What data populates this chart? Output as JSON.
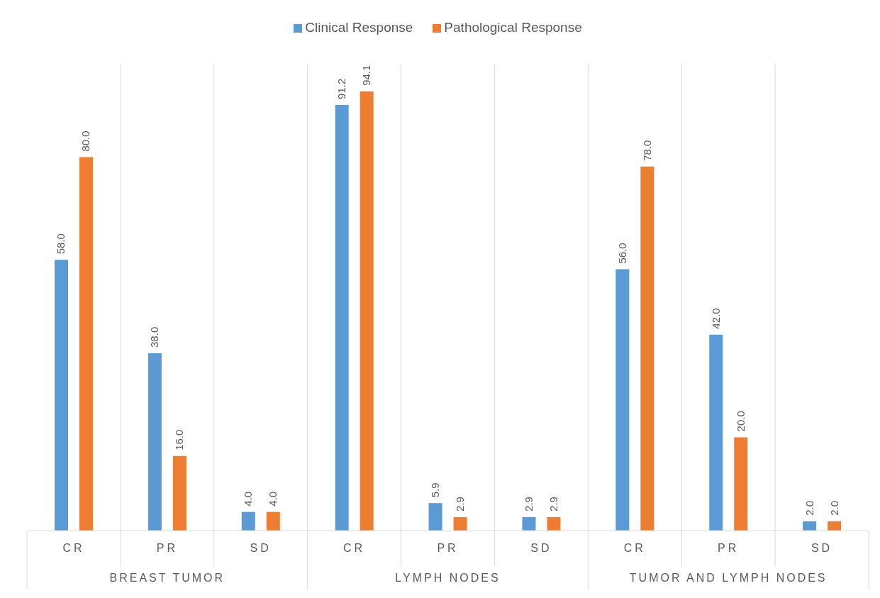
{
  "chart_data": {
    "type": "bar",
    "categories": [
      "CR",
      "PR",
      "SD",
      "CR",
      "PR",
      "SD",
      "CR",
      "PR",
      "SD"
    ],
    "annotations": [
      "BREAST TUMOR",
      "LYMPH NODES",
      "TUMOR AND LYMPH NODES"
    ],
    "series": [
      {
        "name": "Clinical Response",
        "color": "#5b9bd5",
        "values": [
          58.0,
          38.0,
          4.0,
          91.2,
          5.9,
          2.9,
          56.0,
          42.0,
          2.0
        ],
        "value_labels": [
          "58.0",
          "38.0",
          "4.0",
          "91.2",
          "5.9",
          "2.9",
          "56.0",
          "42.0",
          "2.0"
        ]
      },
      {
        "name": "Pathological Response",
        "color": "#ed7d31",
        "values": [
          80.0,
          16.0,
          4.0,
          94.1,
          2.9,
          2.9,
          78.0,
          20.0,
          2.0
        ],
        "value_labels": [
          "80.0",
          "16.0",
          "4.0",
          "94.1",
          "2.9",
          "2.9",
          "78.0",
          "20.0",
          "2.0"
        ]
      }
    ],
    "grid": "x",
    "legend": "top"
  }
}
